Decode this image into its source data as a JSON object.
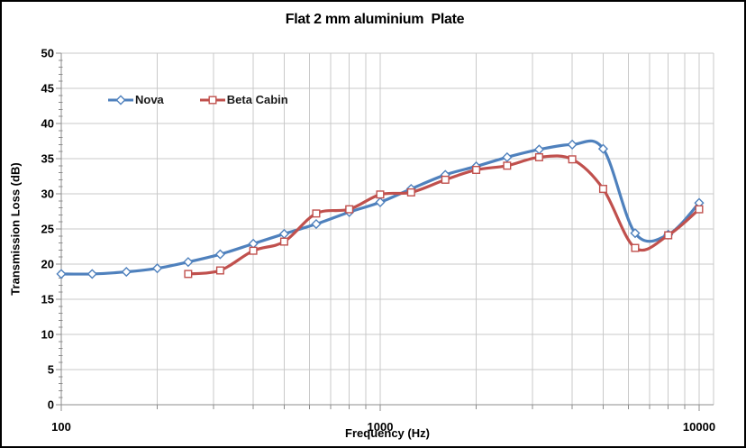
{
  "chart_data": {
    "type": "line",
    "title": "Flat 2 mm aluminium  Plate",
    "xlabel": "Frequency (Hz)",
    "ylabel": "Transmission Loss (dB)",
    "x_scale": "log",
    "xlim": [
      100,
      10000
    ],
    "ylim": [
      0,
      50
    ],
    "y_major_step": 5,
    "y_minor_step": 1,
    "y_tick_labels": [
      "0",
      "5",
      "10",
      "15",
      "20",
      "25",
      "30",
      "35",
      "40",
      "45",
      "50"
    ],
    "x_tick_labels": [
      "100",
      "1000",
      "10000"
    ],
    "x_tick_values": [
      100,
      1000,
      10000
    ],
    "grid": true,
    "grid_color": "#C9C9C9",
    "axis_color": "#8C8C8C",
    "text_color": "#000000",
    "legend_position": "inside-top-left",
    "series": [
      {
        "name": "Nova",
        "color": "#4F81BD",
        "marker": "diamond",
        "smooth": true,
        "x": [
          100,
          125,
          160,
          200,
          250,
          315,
          400,
          500,
          630,
          800,
          1000,
          1250,
          1600,
          2000,
          2500,
          3150,
          4000,
          5000,
          6300,
          8000,
          10000
        ],
        "values": [
          18.6,
          18.6,
          18.9,
          19.4,
          20.3,
          21.4,
          22.9,
          24.3,
          25.7,
          27.4,
          28.8,
          30.7,
          32.7,
          33.9,
          35.2,
          36.3,
          37.0,
          36.4,
          24.4,
          24.2,
          28.7
        ]
      },
      {
        "name": "Beta Cabin",
        "color": "#C0504D",
        "marker": "square",
        "smooth": true,
        "x": [
          250,
          315,
          400,
          500,
          630,
          800,
          1000,
          1250,
          1600,
          2000,
          2500,
          3150,
          4000,
          5000,
          6300,
          8000,
          10000
        ],
        "values": [
          18.6,
          19.1,
          21.9,
          23.2,
          27.2,
          27.8,
          29.9,
          30.2,
          32.0,
          33.4,
          34.0,
          35.2,
          34.9,
          30.7,
          22.3,
          24.1,
          27.8
        ]
      }
    ]
  }
}
